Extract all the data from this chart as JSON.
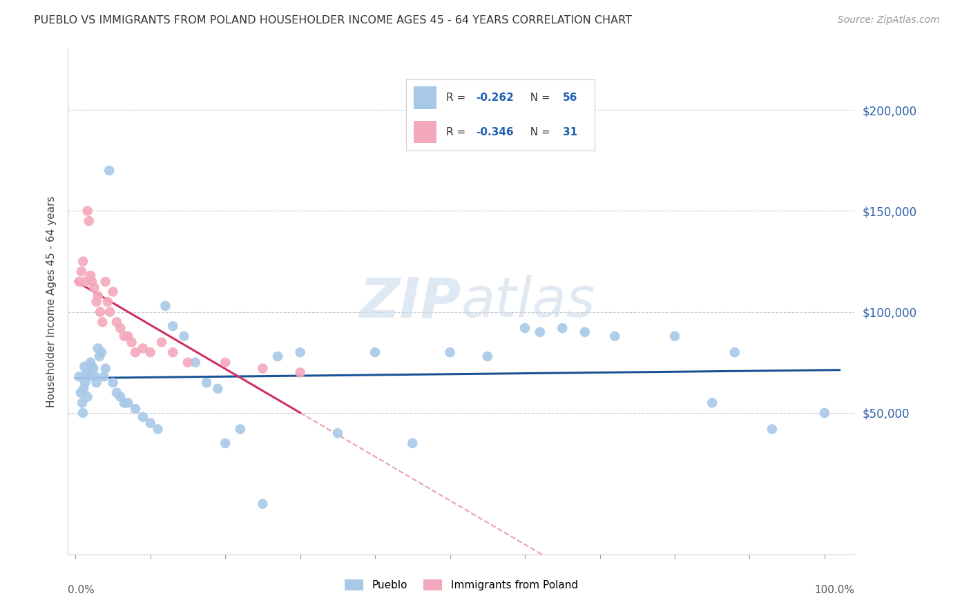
{
  "title": "PUEBLO VS IMMIGRANTS FROM POLAND HOUSEHOLDER INCOME AGES 45 - 64 YEARS CORRELATION CHART",
  "source": "Source: ZipAtlas.com",
  "ylabel": "Householder Income Ages 45 - 64 years",
  "r_pueblo": -0.262,
  "n_pueblo": 56,
  "r_poland": -0.346,
  "n_poland": 31,
  "pueblo_color": "#a8c8e8",
  "poland_color": "#f4a8bc",
  "pueblo_line_color": "#1a5296",
  "poland_line_color": "#d03060",
  "poland_dash_color": "#e8a0b0",
  "ytick_values": [
    50000,
    100000,
    150000,
    200000
  ],
  "ytick_labels": [
    "$50,000",
    "$100,000",
    "$150,000",
    "$200,000"
  ],
  "ymin": -20000,
  "ymax": 230000,
  "xmin": -0.01,
  "xmax": 1.04,
  "pueblo_x": [
    0.005,
    0.007,
    0.009,
    0.01,
    0.011,
    0.012,
    0.013,
    0.015,
    0.016,
    0.018,
    0.02,
    0.022,
    0.024,
    0.026,
    0.028,
    0.03,
    0.032,
    0.035,
    0.038,
    0.04,
    0.045,
    0.05,
    0.055,
    0.06,
    0.065,
    0.07,
    0.08,
    0.09,
    0.1,
    0.11,
    0.12,
    0.13,
    0.145,
    0.16,
    0.175,
    0.19,
    0.2,
    0.22,
    0.25,
    0.27,
    0.3,
    0.35,
    0.4,
    0.45,
    0.5,
    0.55,
    0.6,
    0.62,
    0.65,
    0.68,
    0.72,
    0.8,
    0.85,
    0.88,
    0.93,
    1.0
  ],
  "pueblo_y": [
    68000,
    60000,
    55000,
    50000,
    62000,
    73000,
    65000,
    70000,
    58000,
    68000,
    75000,
    73000,
    72000,
    68000,
    65000,
    82000,
    78000,
    80000,
    68000,
    72000,
    170000,
    65000,
    60000,
    58000,
    55000,
    55000,
    52000,
    48000,
    45000,
    42000,
    103000,
    93000,
    88000,
    75000,
    65000,
    62000,
    35000,
    42000,
    5000,
    78000,
    80000,
    40000,
    80000,
    35000,
    80000,
    78000,
    92000,
    90000,
    92000,
    90000,
    88000,
    88000,
    55000,
    80000,
    42000,
    50000
  ],
  "poland_x": [
    0.005,
    0.008,
    0.01,
    0.013,
    0.016,
    0.018,
    0.02,
    0.022,
    0.025,
    0.028,
    0.03,
    0.033,
    0.036,
    0.04,
    0.043,
    0.046,
    0.05,
    0.055,
    0.06,
    0.065,
    0.07,
    0.075,
    0.08,
    0.09,
    0.1,
    0.115,
    0.13,
    0.15,
    0.2,
    0.25,
    0.3
  ],
  "poland_y": [
    115000,
    120000,
    125000,
    115000,
    150000,
    145000,
    118000,
    115000,
    112000,
    105000,
    108000,
    100000,
    95000,
    115000,
    105000,
    100000,
    110000,
    95000,
    92000,
    88000,
    88000,
    85000,
    80000,
    82000,
    80000,
    85000,
    80000,
    75000,
    75000,
    72000,
    70000
  ]
}
